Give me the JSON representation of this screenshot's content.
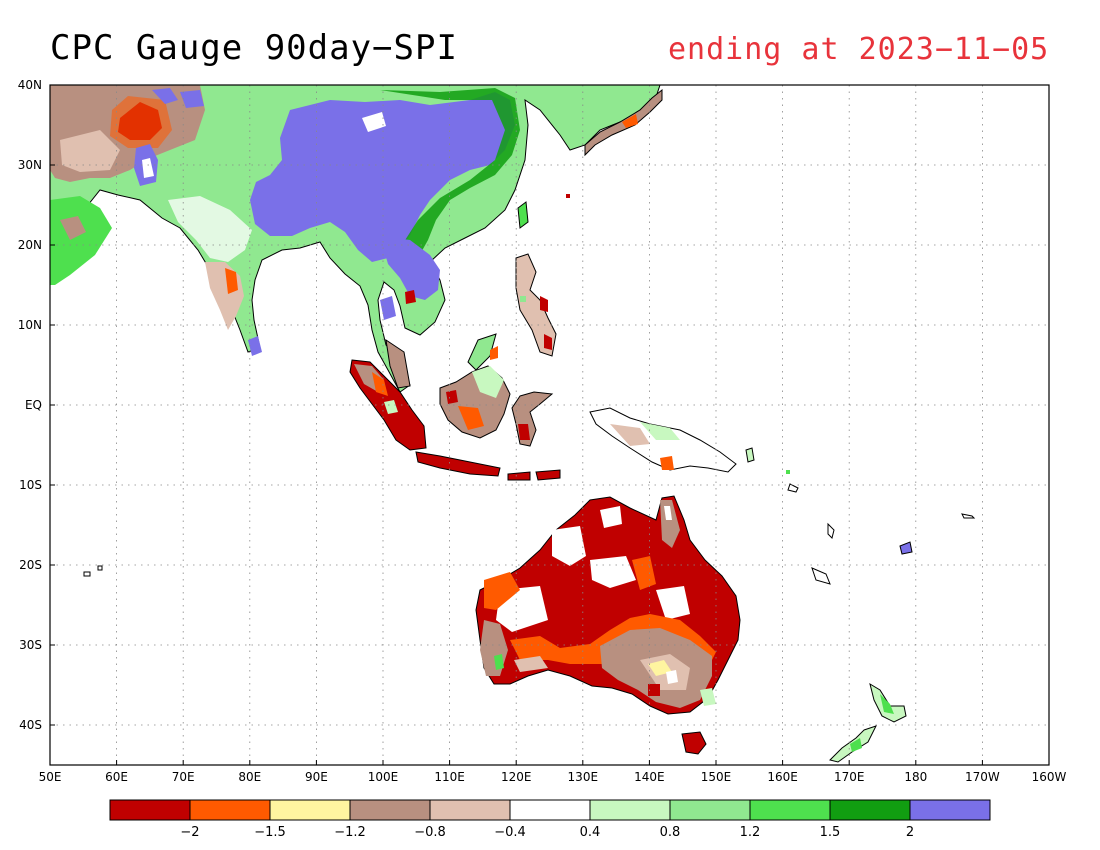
{
  "title": "CPC Gauge 90day−SPI",
  "subtitle": "ending at 2023−11−05",
  "map": {
    "lon_range": [
      50,
      200
    ],
    "lat_range": [
      -45,
      40
    ],
    "lat_ticks": [
      "40N",
      "30N",
      "20N",
      "10N",
      "EQ",
      "10S",
      "20S",
      "30S",
      "40S"
    ],
    "lon_ticks": [
      "50E",
      "60E",
      "70E",
      "80E",
      "90E",
      "100E",
      "110E",
      "120E",
      "130E",
      "140E",
      "150E",
      "160E",
      "170E",
      "180",
      "170W",
      "160W"
    ],
    "grid": true
  },
  "colorbar": {
    "colors": [
      "#c00000",
      "#ff5a00",
      "#fff5a0",
      "#b89080",
      "#e0c0b0",
      "#ffffff",
      "#c8f8c0",
      "#90e890",
      "#4ee04e",
      "#119e11",
      "#7a70e8"
    ],
    "labels": [
      "−2",
      "−1.5",
      "−1.2",
      "−0.8",
      "−0.4",
      "0.4",
      "0.8",
      "1.2",
      "1.5",
      "2"
    ]
  }
}
